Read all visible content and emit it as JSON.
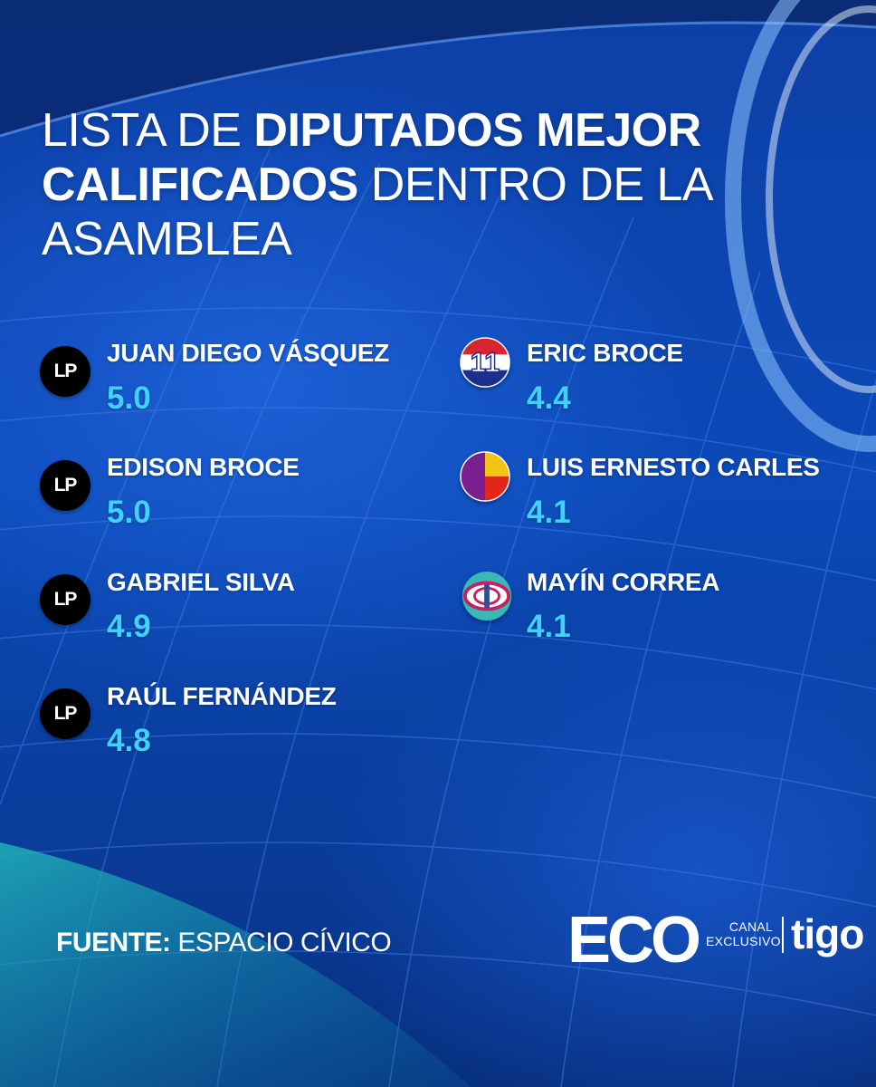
{
  "title": {
    "part1": "LISTA DE ",
    "part2": "DIPUTADOS MEJOR",
    "part3": "CALIFICADOS",
    "part4": " DENTRO DE LA",
    "part5": "ASAMBLEA"
  },
  "left_column": [
    {
      "party_logo": "LP",
      "name": "JUAN DIEGO VÁSQUEZ",
      "score": "5.0"
    },
    {
      "party_logo": "LP",
      "name": "EDISON BROCE",
      "score": "5.0"
    },
    {
      "party_logo": "LP",
      "name": "GABRIEL SILVA",
      "score": "4.9"
    },
    {
      "party_logo": "LP",
      "name": "RAÚL FERNÁNDEZ",
      "score": "4.8"
    }
  ],
  "right_column": [
    {
      "party_logo": "11",
      "logo_icon": "red-white-blue-circle-11-icon",
      "name": "ERIC BROCE",
      "score": "4.4"
    },
    {
      "logo_icon": "purple-red-yellow-circle-icon",
      "name": "LUIS ERNESTO CARLES",
      "score": "4.1"
    },
    {
      "logo_icon": "teal-pink-ring-circle-icon",
      "name": "MAYÍN CORREA",
      "score": "4.1"
    }
  ],
  "footer": {
    "source_label": "FUENTE:",
    "source_value": " ESPACIO CÍVICO"
  },
  "branding": {
    "eco_logo": "ECO",
    "canal_line1": "CANAL",
    "canal_line2": "EXCLUSIVO",
    "tigo_logo": "tigo"
  },
  "colors": {
    "background": "#0b3a9e",
    "score": "#3fd2ff",
    "text": "#ffffff"
  }
}
